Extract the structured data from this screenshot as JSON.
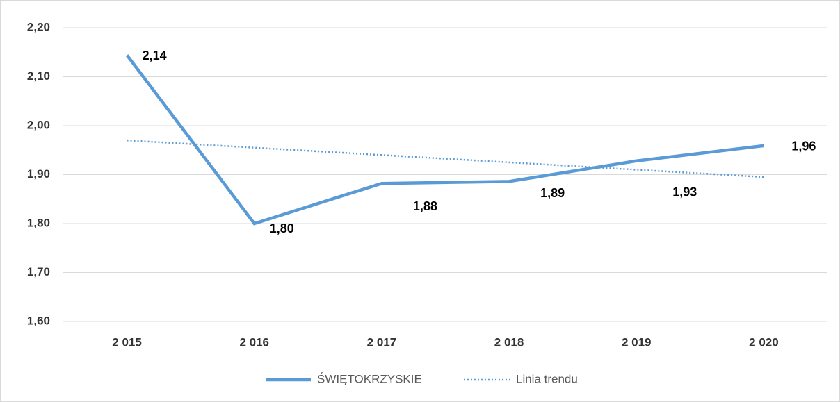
{
  "chart_data": {
    "type": "line",
    "categories": [
      "2 015",
      "2 016",
      "2 017",
      "2 018",
      "2 019",
      "2 020"
    ],
    "series": [
      {
        "name": "ŚWIĘTOKRZYSKIE",
        "color": "#5b9bd5",
        "style": "solid",
        "values": [
          2.144,
          1.8,
          1.882,
          1.886,
          1.928,
          1.959
        ],
        "value_labels": [
          "2,14",
          "1,80",
          "1,88",
          "1,89",
          "1,93",
          "1,96"
        ]
      },
      {
        "name": "Linia trendu",
        "color": "#5b9bd5",
        "style": "dotted",
        "values": [
          1.97,
          1.955,
          1.94,
          1.925,
          1.91,
          1.895
        ]
      }
    ],
    "ylim": [
      1.6,
      2.2
    ],
    "yticks": [
      {
        "value": 1.6,
        "label": "1,60"
      },
      {
        "value": 1.7,
        "label": "1,70"
      },
      {
        "value": 1.8,
        "label": "1,80"
      },
      {
        "value": 1.9,
        "label": "1,90"
      },
      {
        "value": 2.0,
        "label": "2,00"
      },
      {
        "value": 2.1,
        "label": "2,10"
      },
      {
        "value": 2.2,
        "label": "2,20"
      }
    ],
    "grid": true,
    "legend": "bottom"
  }
}
